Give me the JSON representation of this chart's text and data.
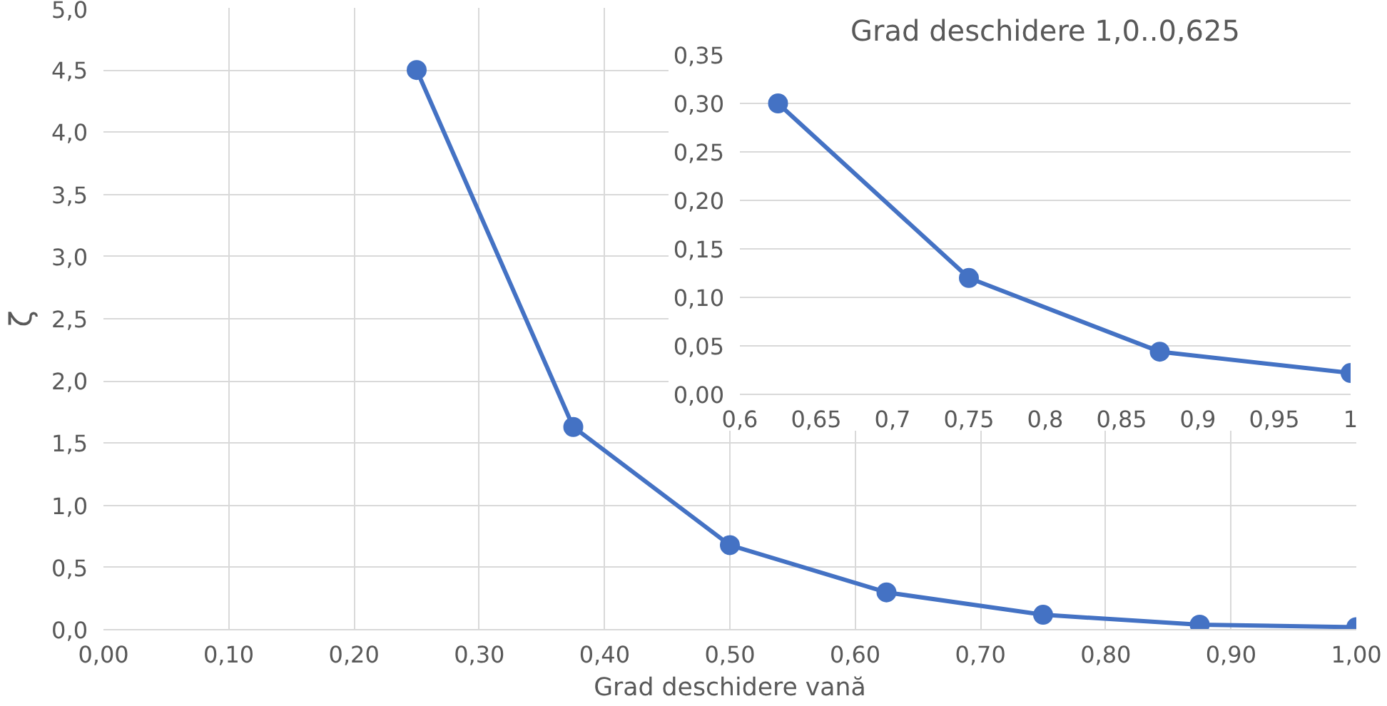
{
  "chart_data": [
    {
      "type": "line",
      "xlabel": "Grad deschidere vană",
      "ylabel": "ζ",
      "x": [
        0.25,
        0.375,
        0.5,
        0.625,
        0.75,
        0.875,
        1.0
      ],
      "series": [
        {
          "color": "#4472c4",
          "values": [
            4.5,
            1.63,
            0.68,
            0.3,
            0.12,
            0.04,
            0.02
          ]
        }
      ],
      "xlim": [
        0,
        1
      ],
      "ylim": [
        0,
        5
      ],
      "xticks": [
        {
          "value": 0,
          "label": "0,00"
        },
        {
          "value": 0.1,
          "label": "0,10"
        },
        {
          "value": 0.2,
          "label": "0,20"
        },
        {
          "value": 0.3,
          "label": "0,30"
        },
        {
          "value": 0.4,
          "label": "0,40"
        },
        {
          "value": 0.5,
          "label": "0,50"
        },
        {
          "value": 0.6,
          "label": "0,60"
        },
        {
          "value": 0.7,
          "label": "0,70"
        },
        {
          "value": 0.8,
          "label": "0,80"
        },
        {
          "value": 0.9,
          "label": "0,90"
        },
        {
          "value": 1,
          "label": "1,00"
        }
      ],
      "yticks": [
        {
          "value": 0,
          "label": "0,0"
        },
        {
          "value": 0.5,
          "label": "0,5"
        },
        {
          "value": 1,
          "label": "1,0"
        },
        {
          "value": 1.5,
          "label": "1,5"
        },
        {
          "value": 2,
          "label": "2,0"
        },
        {
          "value": 2.5,
          "label": "2,5"
        },
        {
          "value": 3,
          "label": "3,0"
        },
        {
          "value": 3.5,
          "label": "3,5"
        },
        {
          "value": 4,
          "label": "4,0"
        },
        {
          "value": 4.5,
          "label": "4,5"
        },
        {
          "value": 5,
          "label": "5,0"
        }
      ],
      "grid": true,
      "marker": "circle",
      "line_style": "solid"
    },
    {
      "type": "line",
      "title": "Grad deschidere 1,0..0,625",
      "x": [
        0.625,
        0.75,
        0.875,
        1.0
      ],
      "series": [
        {
          "color": "#4472c4",
          "values": [
            0.3,
            0.12,
            0.044,
            0.022
          ]
        }
      ],
      "xlim": [
        0.6,
        1
      ],
      "ylim": [
        0,
        0.35
      ],
      "xticks": [
        {
          "value": 0.6,
          "label": "0,6"
        },
        {
          "value": 0.65,
          "label": "0,65"
        },
        {
          "value": 0.7,
          "label": "0,7"
        },
        {
          "value": 0.75,
          "label": "0,75"
        },
        {
          "value": 0.8,
          "label": "0,8"
        },
        {
          "value": 0.85,
          "label": "0,85"
        },
        {
          "value": 0.9,
          "label": "0,9"
        },
        {
          "value": 0.95,
          "label": "0,95"
        },
        1
      ],
      "yticks": [
        {
          "value": 0,
          "label": "0,00"
        },
        {
          "value": 0.05,
          "label": "0,05"
        },
        {
          "value": 0.1,
          "label": "0,10"
        },
        {
          "value": 0.15,
          "label": "0,15"
        },
        {
          "value": 0.2,
          "label": "0,20"
        },
        {
          "value": 0.25,
          "label": "0,25"
        },
        {
          "value": 0.3,
          "label": "0,30"
        },
        {
          "value": 0.35,
          "label": "0,35"
        }
      ],
      "grid": "y",
      "marker": "circle",
      "line_style": "solid"
    }
  ]
}
